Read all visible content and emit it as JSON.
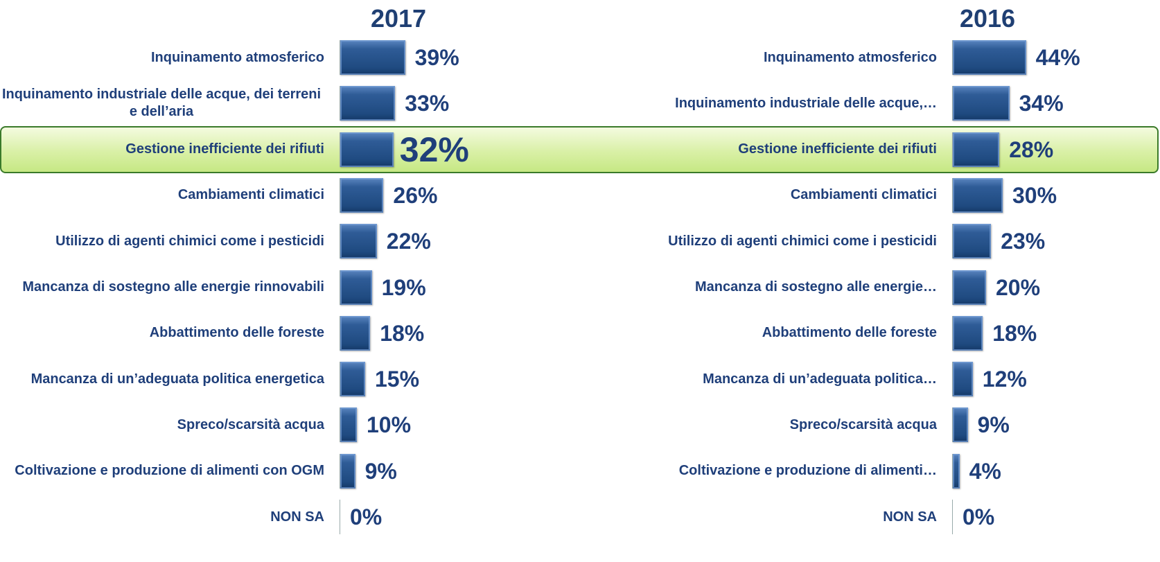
{
  "chart_data": [
    {
      "type": "bar",
      "orientation": "horizontal",
      "title": "2017",
      "color": "#2f5c97",
      "highlight": 2,
      "categories": [
        "Inquinamento atmosferico",
        "Inquinamento industriale delle acque, dei terreni e dell’aria",
        "Gestione inefficiente dei rifiuti",
        "Cambiamenti climatici",
        "Utilizzo di agenti chimici come i pesticidi",
        "Mancanza di sostegno alle energie rinnovabili",
        "Abbattimento delle foreste",
        "Mancanza di un’adeguata politica energetica",
        "Spreco/scarsità  acqua",
        "Coltivazione e produzione di alimenti con OGM",
        "NON SA"
      ],
      "values": [
        39,
        33,
        32,
        26,
        22,
        19,
        18,
        15,
        10,
        9,
        0
      ],
      "value_labels": [
        "39%",
        "33%",
        "32%",
        "26%",
        "22%",
        "19%",
        "18%",
        "15%",
        "10%",
        "9%",
        "0%"
      ]
    },
    {
      "type": "bar",
      "orientation": "horizontal",
      "title": "2016",
      "color": "#2f5c97",
      "categories": [
        "Inquinamento atmosferico",
        "Inquinamento industriale delle acque,…",
        "Gestione inefficiente dei rifiuti",
        "Cambiamenti climatici",
        "Utilizzo di agenti chimici come i pesticidi",
        "Mancanza di sostegno alle energie…",
        "Abbattimento delle foreste",
        "Mancanza di un’adeguata politica…",
        "Spreco/scarsità  acqua",
        "Coltivazione e produzione di alimenti…",
        "NON SA"
      ],
      "values": [
        44,
        34,
        28,
        30,
        23,
        20,
        18,
        12,
        9,
        4,
        0
      ],
      "value_labels": [
        "44%",
        "34%",
        "28%",
        "30%",
        "23%",
        "20%",
        "18%",
        "12%",
        "9%",
        "4%",
        "0%"
      ]
    }
  ]
}
